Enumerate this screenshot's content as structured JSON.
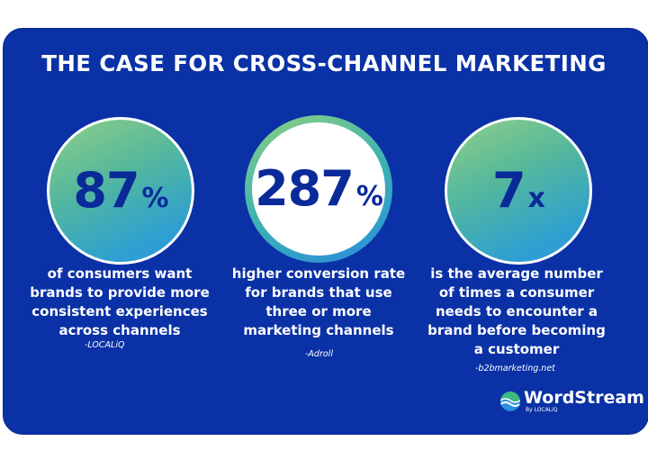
{
  "title": "THE CASE FOR CROSS-CHANNEL MARKETING",
  "stats": [
    {
      "value": "87",
      "unit": "%",
      "text": [
        "of consumers want",
        "brands to provide more",
        "consistent experiences",
        "across channels"
      ],
      "source": "-LOCALiQ"
    },
    {
      "value": "287",
      "unit": "%",
      "text": [
        "higher conversion rate",
        "for brands that use",
        "three or more",
        "marketing channels"
      ],
      "source": "-Adroll"
    },
    {
      "value": "7",
      "unit": "x",
      "text": [
        "is the average number",
        "of times a consumer",
        "needs to encounter a",
        "brand before becoming",
        "a customer"
      ],
      "source": "-b2bmarketing.net"
    }
  ],
  "logo": {
    "name": "WordStream",
    "sub": "By LOCALiQ",
    "icon": "wordstream-wave-icon"
  },
  "colors": {
    "background": "#0a31a6",
    "stat_text": "#0a2a99",
    "gradient_start": "#8fcf88",
    "gradient_end": "#2a98e0"
  }
}
